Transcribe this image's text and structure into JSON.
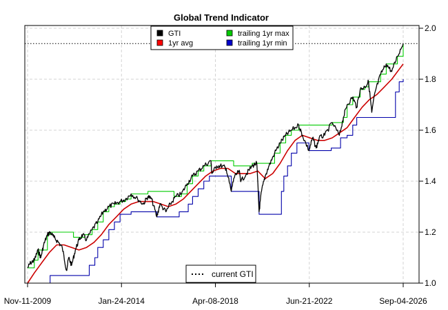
{
  "chart_data": {
    "type": "line",
    "title": "Global Trend Indicator",
    "xlabel": "",
    "ylabel": "",
    "x_ticks": [
      "Nov-11-2009",
      "Jan-24-2014",
      "Apr-08-2018",
      "Jun-21-2022",
      "Sep-04-2026"
    ],
    "y_ticks": [
      "1.0",
      "1.2",
      "1.4",
      "1.6",
      "1.8",
      "2.0"
    ],
    "xlim": [
      "2009-11-11",
      "2026-09-04"
    ],
    "ylim": [
      1.0,
      2.0
    ],
    "grid": true,
    "y_axis_side": "right",
    "legend_main": {
      "placement": "top-center",
      "entries": [
        {
          "label": "GTI",
          "color": "#000000"
        },
        {
          "label": "1yr avg",
          "color": "#ff0000"
        },
        {
          "label": "trailing 1yr max",
          "color": "#00cc00"
        },
        {
          "label": "trailing 1yr min",
          "color": "#0000cc"
        }
      ]
    },
    "legend_current": {
      "placement": "bottom-center",
      "label": "current GTI"
    },
    "current_gti": 1.94,
    "series": [
      {
        "name": "GTI",
        "color": "#000000",
        "points": [
          [
            "2009-11-11",
            1.06
          ],
          [
            "2010-01-01",
            1.08
          ],
          [
            "2010-03-01",
            1.09
          ],
          [
            "2010-05-01",
            1.13
          ],
          [
            "2010-06-15",
            1.1
          ],
          [
            "2010-08-01",
            1.15
          ],
          [
            "2010-10-01",
            1.19
          ],
          [
            "2010-11-15",
            1.2
          ],
          [
            "2011-01-15",
            1.18
          ],
          [
            "2011-04-01",
            1.16
          ],
          [
            "2011-06-01",
            1.14
          ],
          [
            "2011-08-10",
            1.05
          ],
          [
            "2011-09-15",
            1.1
          ],
          [
            "2011-11-01",
            1.07
          ],
          [
            "2012-01-01",
            1.13
          ],
          [
            "2012-03-01",
            1.17
          ],
          [
            "2012-05-01",
            1.19
          ],
          [
            "2012-07-01",
            1.17
          ],
          [
            "2012-10-01",
            1.21
          ],
          [
            "2013-01-01",
            1.24
          ],
          [
            "2013-04-01",
            1.28
          ],
          [
            "2013-07-01",
            1.3
          ],
          [
            "2013-10-01",
            1.31
          ],
          [
            "2014-01-01",
            1.32
          ],
          [
            "2014-04-01",
            1.33
          ],
          [
            "2014-07-01",
            1.35
          ],
          [
            "2014-10-15",
            1.33
          ],
          [
            "2015-01-15",
            1.31
          ],
          [
            "2015-04-01",
            1.34
          ],
          [
            "2015-06-01",
            1.33
          ],
          [
            "2015-08-25",
            1.26
          ],
          [
            "2015-10-15",
            1.31
          ],
          [
            "2016-01-20",
            1.28
          ],
          [
            "2016-04-01",
            1.31
          ],
          [
            "2016-07-01",
            1.34
          ],
          [
            "2016-10-01",
            1.35
          ],
          [
            "2017-01-01",
            1.39
          ],
          [
            "2017-04-01",
            1.42
          ],
          [
            "2017-07-01",
            1.44
          ],
          [
            "2017-10-01",
            1.46
          ],
          [
            "2018-01-26",
            1.48
          ],
          [
            "2018-02-10",
            1.43
          ],
          [
            "2018-05-01",
            1.46
          ],
          [
            "2018-08-01",
            1.46
          ],
          [
            "2018-10-01",
            1.45
          ],
          [
            "2018-12-24",
            1.36
          ],
          [
            "2019-02-01",
            1.41
          ],
          [
            "2019-05-01",
            1.44
          ],
          [
            "2019-06-01",
            1.4
          ],
          [
            "2019-09-01",
            1.43
          ],
          [
            "2019-12-01",
            1.46
          ],
          [
            "2020-02-15",
            1.47
          ],
          [
            "2020-03-23",
            1.28
          ],
          [
            "2020-05-01",
            1.36
          ],
          [
            "2020-07-01",
            1.42
          ],
          [
            "2020-09-01",
            1.46
          ],
          [
            "2020-12-01",
            1.51
          ],
          [
            "2021-03-01",
            1.55
          ],
          [
            "2021-06-01",
            1.58
          ],
          [
            "2021-09-01",
            1.6
          ],
          [
            "2021-12-31",
            1.62
          ],
          [
            "2022-03-01",
            1.58
          ],
          [
            "2022-06-16",
            1.52
          ],
          [
            "2022-08-15",
            1.57
          ],
          [
            "2022-10-12",
            1.53
          ],
          [
            "2022-12-01",
            1.57
          ],
          [
            "2023-03-01",
            1.58
          ],
          [
            "2023-07-01",
            1.63
          ],
          [
            "2023-10-27",
            1.58
          ],
          [
            "2023-12-31",
            1.65
          ],
          [
            "2024-03-01",
            1.7
          ],
          [
            "2024-06-01",
            1.73
          ],
          [
            "2024-08-05",
            1.69
          ],
          [
            "2024-10-01",
            1.76
          ],
          [
            "2024-12-15",
            1.77
          ],
          [
            "2025-02-15",
            1.79
          ],
          [
            "2025-04-08",
            1.67
          ],
          [
            "2025-06-01",
            1.75
          ],
          [
            "2025-09-01",
            1.82
          ],
          [
            "2025-12-01",
            1.86
          ],
          [
            "2026-03-01",
            1.83
          ],
          [
            "2026-06-01",
            1.89
          ],
          [
            "2026-09-04",
            1.94
          ]
        ]
      },
      {
        "name": "1yr avg",
        "color": "#cc0000",
        "points": [
          [
            "2009-11-11",
            1.0
          ],
          [
            "2010-03-01",
            1.04
          ],
          [
            "2010-07-01",
            1.08
          ],
          [
            "2010-11-01",
            1.12
          ],
          [
            "2011-03-01",
            1.15
          ],
          [
            "2011-07-01",
            1.15
          ],
          [
            "2011-11-01",
            1.14
          ],
          [
            "2012-03-01",
            1.13
          ],
          [
            "2012-07-01",
            1.14
          ],
          [
            "2012-11-01",
            1.16
          ],
          [
            "2013-03-01",
            1.19
          ],
          [
            "2013-07-01",
            1.23
          ],
          [
            "2013-11-01",
            1.26
          ],
          [
            "2014-03-01",
            1.29
          ],
          [
            "2014-07-01",
            1.31
          ],
          [
            "2014-11-01",
            1.32
          ],
          [
            "2015-03-01",
            1.32
          ],
          [
            "2015-07-01",
            1.32
          ],
          [
            "2015-11-01",
            1.31
          ],
          [
            "2016-03-01",
            1.3
          ],
          [
            "2016-07-01",
            1.31
          ],
          [
            "2016-11-01",
            1.33
          ],
          [
            "2017-03-01",
            1.36
          ],
          [
            "2017-07-01",
            1.39
          ],
          [
            "2017-11-01",
            1.42
          ],
          [
            "2018-03-01",
            1.44
          ],
          [
            "2018-07-01",
            1.45
          ],
          [
            "2018-11-01",
            1.45
          ],
          [
            "2019-03-01",
            1.43
          ],
          [
            "2019-07-01",
            1.43
          ],
          [
            "2019-11-01",
            1.43
          ],
          [
            "2020-03-01",
            1.44
          ],
          [
            "2020-07-01",
            1.41
          ],
          [
            "2020-11-01",
            1.43
          ],
          [
            "2021-03-01",
            1.47
          ],
          [
            "2021-07-01",
            1.52
          ],
          [
            "2021-11-01",
            1.56
          ],
          [
            "2022-03-01",
            1.58
          ],
          [
            "2022-07-01",
            1.57
          ],
          [
            "2022-11-01",
            1.56
          ],
          [
            "2023-03-01",
            1.56
          ],
          [
            "2023-07-01",
            1.57
          ],
          [
            "2023-11-01",
            1.59
          ],
          [
            "2024-03-01",
            1.61
          ],
          [
            "2024-07-01",
            1.65
          ],
          [
            "2024-11-01",
            1.69
          ],
          [
            "2025-03-01",
            1.72
          ],
          [
            "2025-07-01",
            1.74
          ],
          [
            "2025-11-01",
            1.77
          ],
          [
            "2026-03-01",
            1.8
          ],
          [
            "2026-09-04",
            1.86
          ]
        ]
      },
      {
        "name": "trailing 1yr max",
        "color": "#00cc00",
        "shape": "step",
        "points": [
          [
            "2009-11-11",
            1.06
          ],
          [
            "2010-03-01",
            1.09
          ],
          [
            "2010-05-01",
            1.13
          ],
          [
            "2010-10-01",
            1.19
          ],
          [
            "2010-11-15",
            1.2
          ],
          [
            "2011-12-01",
            1.18
          ],
          [
            "2012-06-01",
            1.19
          ],
          [
            "2012-10-01",
            1.21
          ],
          [
            "2013-01-01",
            1.24
          ],
          [
            "2013-04-01",
            1.28
          ],
          [
            "2013-07-01",
            1.3
          ],
          [
            "2013-10-01",
            1.31
          ],
          [
            "2014-01-01",
            1.32
          ],
          [
            "2014-04-01",
            1.33
          ],
          [
            "2014-07-01",
            1.35
          ],
          [
            "2015-04-01",
            1.36
          ],
          [
            "2015-07-01",
            1.36
          ],
          [
            "2016-06-01",
            1.34
          ],
          [
            "2016-07-01",
            1.34
          ],
          [
            "2016-10-01",
            1.35
          ],
          [
            "2017-01-01",
            1.39
          ],
          [
            "2017-04-01",
            1.42
          ],
          [
            "2017-07-01",
            1.44
          ],
          [
            "2017-10-01",
            1.46
          ],
          [
            "2018-01-26",
            1.48
          ],
          [
            "2019-02-01",
            1.46
          ],
          [
            "2019-12-01",
            1.47
          ],
          [
            "2020-03-01",
            1.47
          ],
          [
            "2020-09-01",
            1.47
          ],
          [
            "2020-12-01",
            1.51
          ],
          [
            "2021-03-01",
            1.55
          ],
          [
            "2021-06-01",
            1.58
          ],
          [
            "2021-09-01",
            1.6
          ],
          [
            "2021-12-31",
            1.62
          ],
          [
            "2023-01-01",
            1.62
          ],
          [
            "2023-07-01",
            1.63
          ],
          [
            "2023-12-31",
            1.65
          ],
          [
            "2024-03-01",
            1.7
          ],
          [
            "2024-06-01",
            1.73
          ],
          [
            "2024-10-01",
            1.76
          ],
          [
            "2024-12-15",
            1.77
          ],
          [
            "2025-02-15",
            1.79
          ],
          [
            "2025-09-01",
            1.82
          ],
          [
            "2025-12-01",
            1.86
          ],
          [
            "2026-06-01",
            1.89
          ],
          [
            "2026-09-04",
            1.94
          ]
        ]
      },
      {
        "name": "trailing 1yr min",
        "color": "#0000aa",
        "shape": "step",
        "points": [
          [
            "2009-11-11",
            1.0
          ],
          [
            "2010-11-15",
            1.03
          ],
          [
            "2011-08-10",
            1.03
          ],
          [
            "2012-08-15",
            1.07
          ],
          [
            "2012-11-15",
            1.1
          ],
          [
            "2013-01-01",
            1.14
          ],
          [
            "2013-04-01",
            1.17
          ],
          [
            "2013-07-01",
            1.21
          ],
          [
            "2013-10-01",
            1.24
          ],
          [
            "2014-01-01",
            1.27
          ],
          [
            "2014-07-01",
            1.28
          ],
          [
            "2015-01-15",
            1.28
          ],
          [
            "2015-08-25",
            1.26
          ],
          [
            "2016-01-20",
            1.26
          ],
          [
            "2016-08-25",
            1.28
          ],
          [
            "2017-01-20",
            1.31
          ],
          [
            "2017-04-01",
            1.34
          ],
          [
            "2017-07-01",
            1.37
          ],
          [
            "2017-10-01",
            1.4
          ],
          [
            "2018-01-01",
            1.42
          ],
          [
            "2018-02-10",
            1.42
          ],
          [
            "2018-12-24",
            1.36
          ],
          [
            "2019-12-24",
            1.36
          ],
          [
            "2020-03-23",
            1.27
          ],
          [
            "2021-03-23",
            1.36
          ],
          [
            "2021-05-01",
            1.42
          ],
          [
            "2021-07-01",
            1.46
          ],
          [
            "2021-09-01",
            1.51
          ],
          [
            "2021-12-01",
            1.55
          ],
          [
            "2022-06-16",
            1.52
          ],
          [
            "2023-06-16",
            1.53
          ],
          [
            "2023-10-27",
            1.53
          ],
          [
            "2023-11-15",
            1.57
          ],
          [
            "2024-03-01",
            1.58
          ],
          [
            "2024-06-01",
            1.62
          ],
          [
            "2024-08-05",
            1.65
          ],
          [
            "2025-04-08",
            1.65
          ],
          [
            "2026-04-08",
            1.65
          ],
          [
            "2026-05-01",
            1.75
          ],
          [
            "2026-07-01",
            1.79
          ],
          [
            "2026-09-04",
            1.8
          ]
        ]
      }
    ]
  }
}
